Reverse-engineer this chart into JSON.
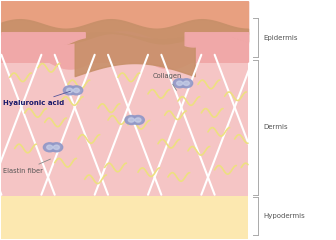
{
  "fig_width": 3.36,
  "fig_height": 2.4,
  "dpi": 100,
  "bg_color": "#ffffff",
  "dermis_color": "#f5c5c5",
  "hypodermis_color": "#fce8b0",
  "epidermis_pink": "#f0a8a8",
  "epidermis_salmon": "#e8a080",
  "stratum_color": "#c8906a",
  "collagen_color": "#ffffff",
  "elastin_color": "#ede080",
  "ha_color": "#9098c8",
  "ha_inner_color": "#c8d0e8",
  "label_dermis": "Dermis",
  "label_epidermis": "Epidermis",
  "label_hypodermis": "Hypodermis",
  "label_collagen": "Collagen",
  "label_ha": "Hyaluronic acid",
  "label_elastin": "Elastin fiber",
  "text_color": "#555555",
  "text_color_ha": "#1a1a6a",
  "bracket_color": "#aaaaaa"
}
